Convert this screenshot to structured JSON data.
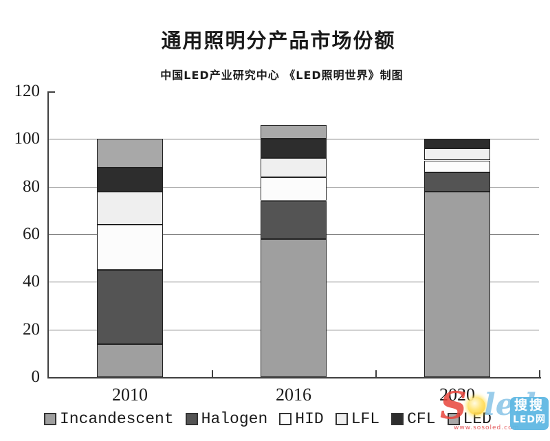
{
  "title": "通用照明分产品市场份额",
  "subtitle": "中国LED产业研究中心  《LED照明世界》制图",
  "chart_data": {
    "type": "bar",
    "stacked": true,
    "title": "通用照明分产品市场份额",
    "subtitle": "中国LED产业研究中心 《LED照明世界》制图",
    "categories": [
      "2010",
      "2016",
      "2020"
    ],
    "series": [
      {
        "name": "Incandescent",
        "color": "#9f9f9f",
        "values": [
          14,
          58,
          78
        ]
      },
      {
        "name": "Halogen",
        "color": "#545454",
        "values": [
          31,
          16,
          8
        ]
      },
      {
        "name": "HID",
        "color": "#fcfcfc",
        "values": [
          19,
          10,
          5
        ]
      },
      {
        "name": "LFL",
        "color": "#efefef",
        "values": [
          14,
          8,
          5
        ]
      },
      {
        "name": "CFL",
        "color": "#2d2d2d",
        "values": [
          10,
          8,
          4
        ]
      },
      {
        "name": "LED",
        "color": "#a8a8a8",
        "values": [
          12,
          6,
          0
        ]
      }
    ],
    "stack_totals": [
      100,
      106,
      100
    ],
    "ylim": [
      0,
      120
    ],
    "yticks": [
      0,
      20,
      40,
      60,
      80,
      100,
      120
    ],
    "grid": true,
    "legend_position": "bottom",
    "segment_border_color": "#222222",
    "gridline_color": "#7f7f7f",
    "axis_color": "#3f3f3f"
  },
  "watermark": {
    "brand_s": "S",
    "brand_rest": "led",
    "url": "www.sosoled.com",
    "badge_line1": "搜搜",
    "badge_line2": "LED网",
    "badge_color": "#5fb8e3",
    "brand_red": "#e8453c"
  }
}
